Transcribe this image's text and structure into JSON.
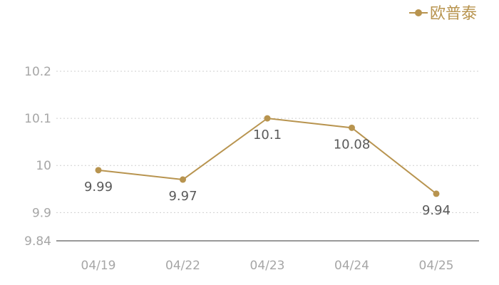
{
  "chart_data": {
    "type": "line",
    "categories": [
      "04/19",
      "04/22",
      "04/23",
      "04/24",
      "04/25"
    ],
    "series": [
      {
        "name": "欧普泰",
        "values": [
          9.99,
          9.97,
          10.1,
          10.08,
          9.94
        ],
        "data_labels": [
          "9.99",
          "9.97",
          "10.1",
          "10.08",
          "9.94"
        ]
      }
    ],
    "ylim": [
      9.84,
      10.2
    ],
    "y_ticks": [
      9.84,
      9.9,
      10,
      10.1,
      10.2
    ],
    "y_tick_labels": [
      "9.84",
      "9.9",
      "10",
      "10.1",
      "10.2"
    ],
    "grid": "horizontal dotted",
    "legend_position": "top-right"
  },
  "colors": {
    "series": "#b8944f",
    "legend_text": "#b8944f",
    "axis_text": "#a6a6a6",
    "label_text": "#5a5a5a",
    "grid": "#cfcfcf",
    "axis_line": "#333333"
  }
}
